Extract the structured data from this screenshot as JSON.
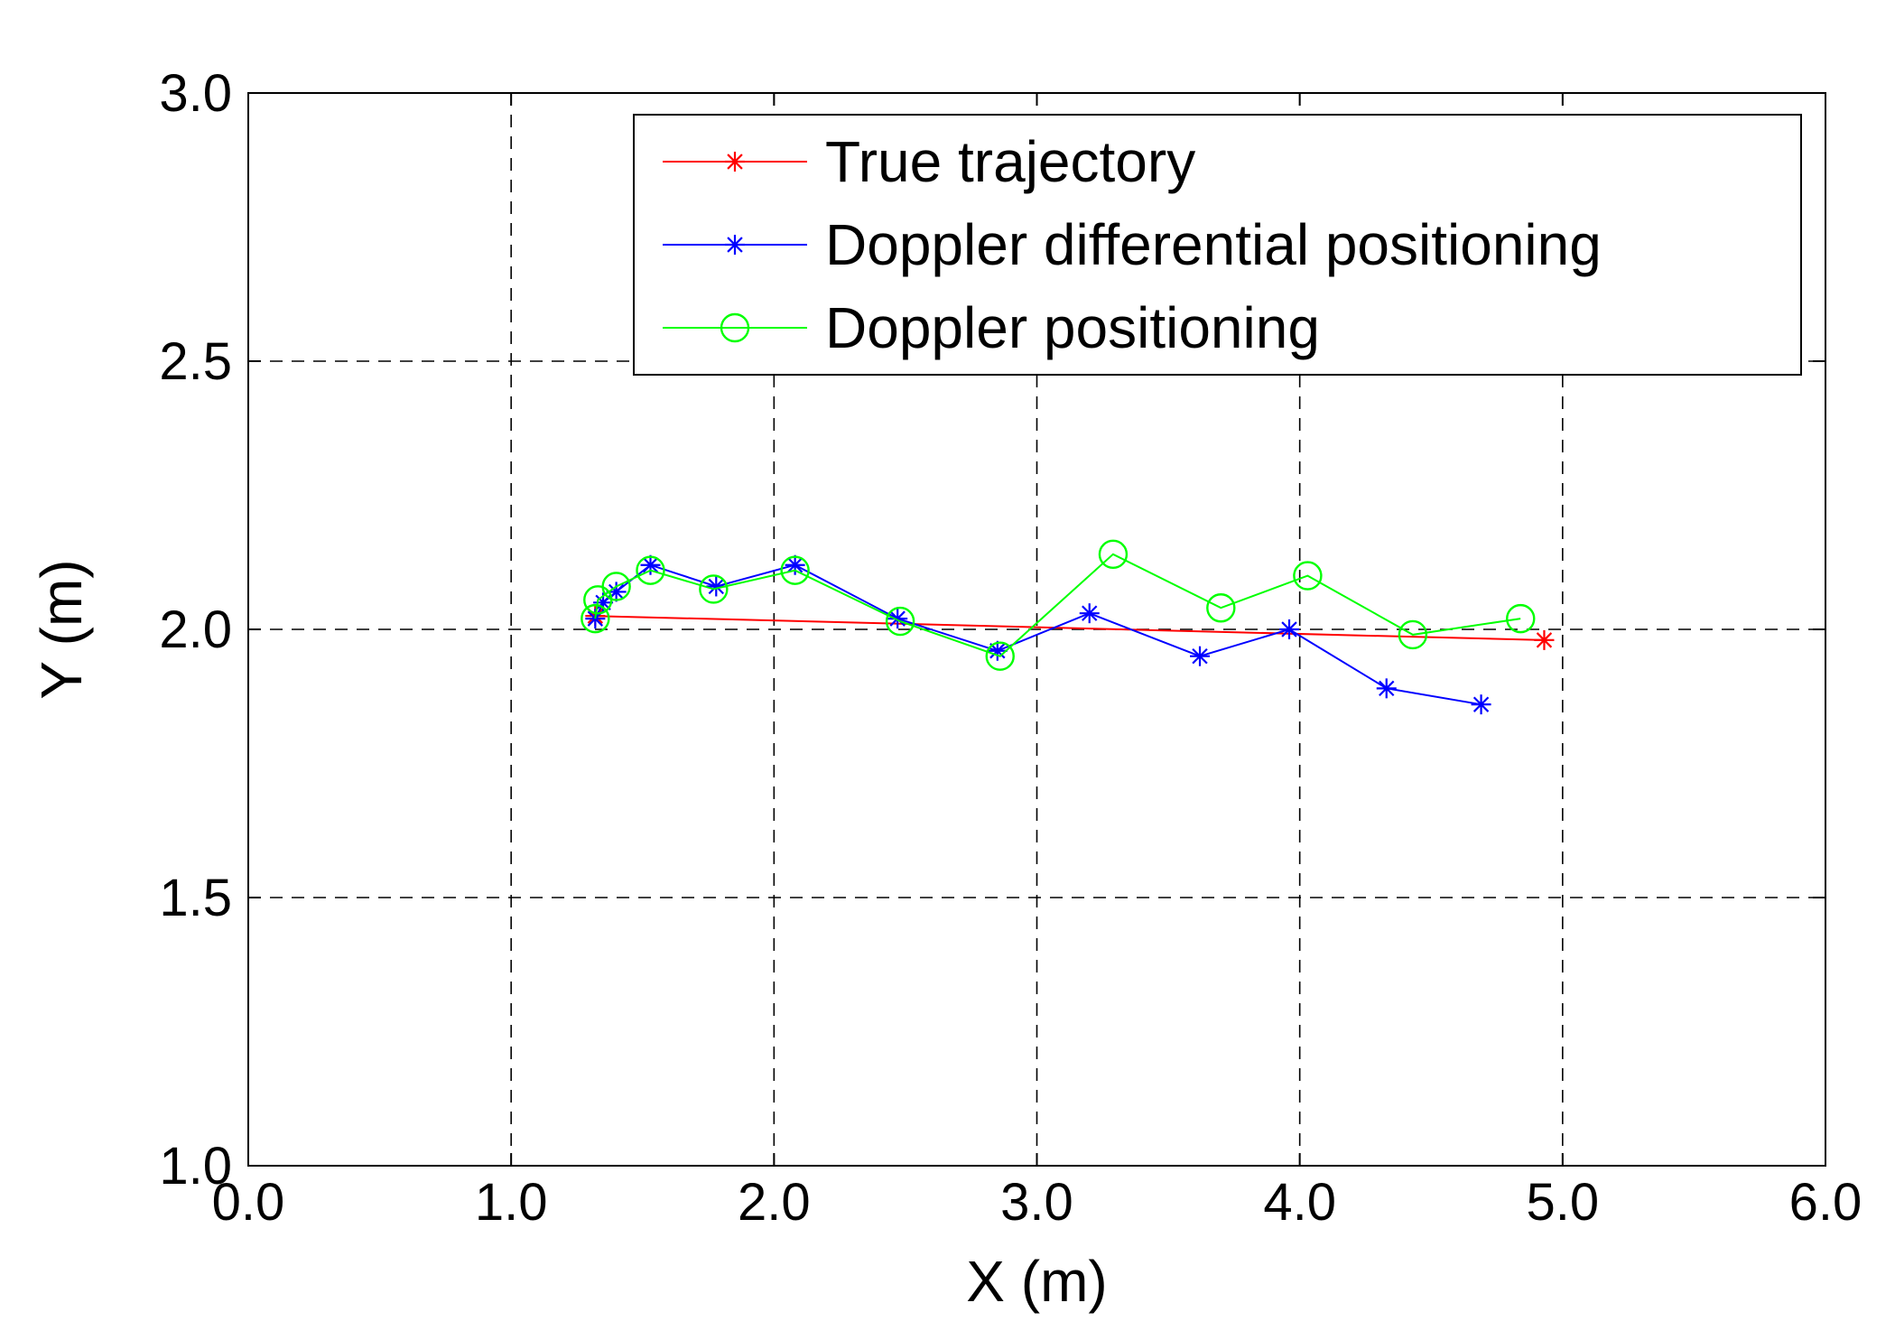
{
  "chart_data": {
    "type": "line",
    "title": "",
    "xlabel": "X (m)",
    "ylabel": "Y (m)",
    "xlim": [
      0,
      6
    ],
    "ylim": [
      1,
      3
    ],
    "xticks": [
      0,
      1,
      2,
      3,
      4,
      5,
      6
    ],
    "yticks": [
      1,
      1.5,
      2,
      2.5,
      3
    ],
    "xtick_labels": [
      "0.0",
      "1.0",
      "2.0",
      "3.0",
      "4.0",
      "5.0",
      "6.0"
    ],
    "ytick_labels": [
      "1.0",
      "1.5",
      "2.0",
      "2.5",
      "3.0"
    ],
    "grid": true,
    "grid_style": "dashed",
    "legend_position": "top-right",
    "series": [
      {
        "name": "True trajectory",
        "color": "#ff0000",
        "marker": "asterisk",
        "x": [
          1.32,
          4.93
        ],
        "y": [
          2.025,
          1.98
        ]
      },
      {
        "name": "Doppler differential positioning",
        "color": "#0000ff",
        "marker": "asterisk",
        "x": [
          1.32,
          1.35,
          1.4,
          1.53,
          1.78,
          2.08,
          2.47,
          2.85,
          3.2,
          3.62,
          3.96,
          4.33,
          4.69
        ],
        "y": [
          2.02,
          2.05,
          2.07,
          2.12,
          2.08,
          2.12,
          2.02,
          1.96,
          2.03,
          1.95,
          2.0,
          1.89,
          1.86
        ]
      },
      {
        "name": "Doppler positioning",
        "color": "#00ff00",
        "marker": "circle",
        "x": [
          1.32,
          1.33,
          1.4,
          1.53,
          1.77,
          2.08,
          2.48,
          2.86,
          3.29,
          3.7,
          4.03,
          4.43,
          4.84
        ],
        "y": [
          2.02,
          2.055,
          2.08,
          2.11,
          2.075,
          2.11,
          2.015,
          1.95,
          2.14,
          2.04,
          2.1,
          1.99,
          2.02
        ]
      }
    ]
  }
}
